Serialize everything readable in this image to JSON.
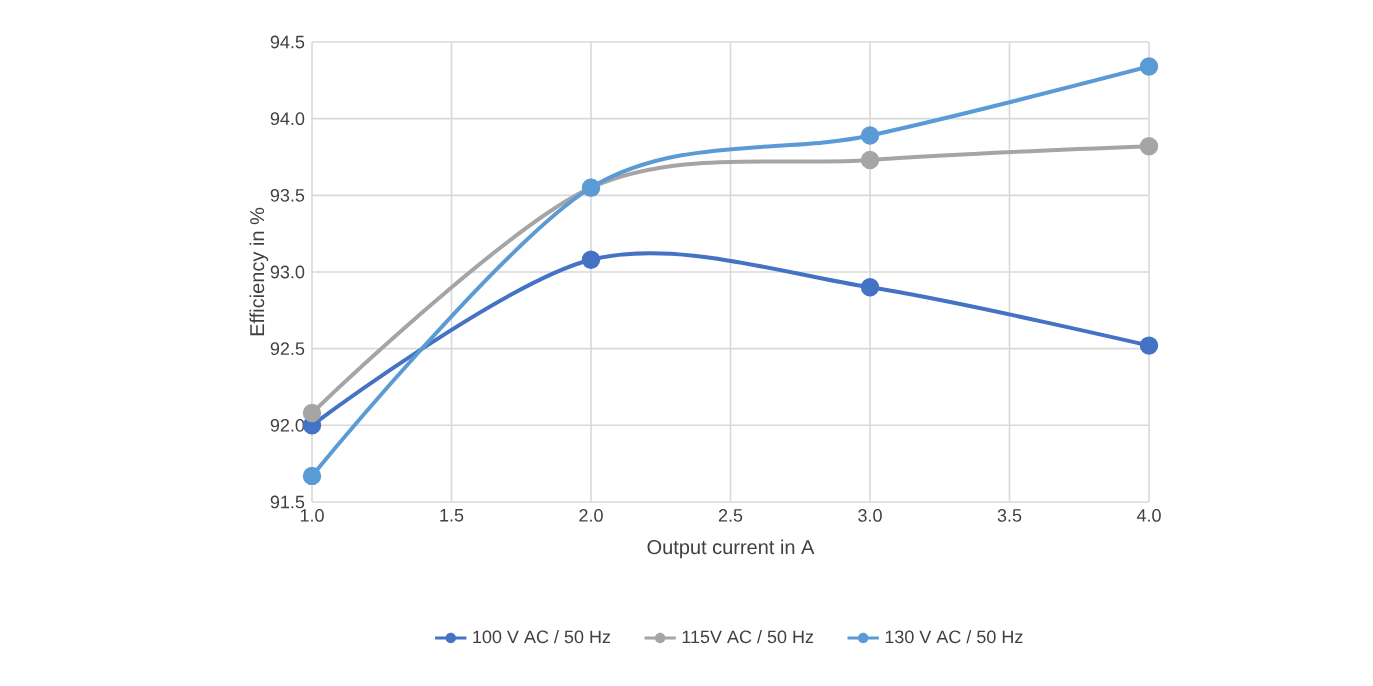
{
  "chart_data": {
    "type": "line",
    "xlabel": "Output current in A",
    "ylabel": "Efficiency in %",
    "x": [
      1.0,
      2.0,
      3.0,
      4.0
    ],
    "series": [
      {
        "name": "100 V AC / 50 Hz",
        "color": "#4472c4",
        "values": [
          92.0,
          93.08,
          92.9,
          92.52
        ]
      },
      {
        "name": "115V AC / 50 Hz",
        "color": "#a5a5a5",
        "values": [
          92.08,
          93.55,
          93.73,
          93.82
        ]
      },
      {
        "name": "130 V AC / 50 Hz",
        "color": "#5b9bd5",
        "values": [
          91.67,
          93.55,
          93.89,
          94.34
        ]
      }
    ],
    "xlim": [
      1.0,
      4.0
    ],
    "ylim": [
      91.5,
      94.5
    ],
    "xticks": [
      {
        "value": 1.0,
        "label": "1.0"
      },
      {
        "value": 1.5,
        "label": "1.5"
      },
      {
        "value": 2.0,
        "label": "2.0"
      },
      {
        "value": 2.5,
        "label": "2.5"
      },
      {
        "value": 3.0,
        "label": "3.0"
      },
      {
        "value": 3.5,
        "label": "3.5"
      },
      {
        "value": 4.0,
        "label": "4.0"
      }
    ],
    "yticks": [
      {
        "value": 91.5,
        "label": "91.5"
      },
      {
        "value": 92.0,
        "label": "92.0"
      },
      {
        "value": 92.5,
        "label": "92.5"
      },
      {
        "value": 93.0,
        "label": "93.0"
      },
      {
        "value": 93.5,
        "label": "93.5"
      },
      {
        "value": 94.0,
        "label": "94.0"
      },
      {
        "value": 94.5,
        "label": "94.5"
      }
    ],
    "grid": true,
    "legend": "bottom",
    "marker": "circle",
    "line_style": "solid"
  }
}
